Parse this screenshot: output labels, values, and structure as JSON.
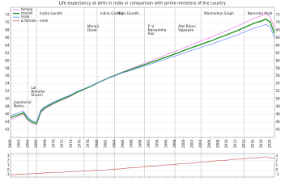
{
  "chart_data": [
    {
      "type": "line",
      "title": "Life expectancy at birth in India in comparison with prime ministers of the country",
      "x": [
        1960,
        1961,
        1962,
        1963,
        1964,
        1965,
        1966,
        1967,
        1968,
        1969,
        1970,
        1971,
        1972,
        1973,
        1974,
        1975,
        1976,
        1977,
        1978,
        1979,
        1980,
        1981,
        1982,
        1983,
        1984,
        1985,
        1986,
        1987,
        1988,
        1989,
        1990,
        1991,
        1992,
        1993,
        1994,
        1995,
        1996,
        1997,
        1998,
        1999,
        2000,
        2001,
        2002,
        2003,
        2004,
        2005,
        2006,
        2007,
        2008,
        2009,
        2010,
        2011,
        2012,
        2013,
        2014,
        2015,
        2016,
        2017,
        2018,
        2019,
        2020,
        2021
      ],
      "series": [
        {
          "name": "female",
          "color": "#ee77ee",
          "values": [
            44.7,
            45.1,
            45.6,
            46.0,
            44.4,
            43.6,
            43.3,
            46.5,
            47.5,
            48.1,
            48.8,
            49.3,
            49.8,
            50.3,
            50.8,
            51.5,
            52.0,
            52.5,
            53.0,
            53.6,
            54.2,
            54.7,
            55.2,
            55.8,
            56.2,
            56.7,
            57.2,
            57.6,
            58.1,
            58.5,
            58.9,
            59.4,
            59.8,
            60.2,
            60.7,
            61.1,
            61.6,
            62.0,
            62.4,
            62.9,
            63.4,
            63.8,
            64.3,
            64.7,
            65.2,
            65.6,
            66.0,
            66.5,
            67.0,
            67.4,
            67.9,
            68.4,
            68.9,
            69.4,
            69.9,
            70.5,
            71.0,
            71.4,
            71.8,
            72.3,
            71.5,
            68.5
          ]
        },
        {
          "name": "overall",
          "color": "#229922",
          "values": [
            45.2,
            45.6,
            46.0,
            46.4,
            44.8,
            44.0,
            43.6,
            46.8,
            47.8,
            48.4,
            49.0,
            49.5,
            50.0,
            50.5,
            51.0,
            51.6,
            52.1,
            52.6,
            53.1,
            53.6,
            54.2,
            54.7,
            55.2,
            55.7,
            56.1,
            56.6,
            57.0,
            57.4,
            57.8,
            58.2,
            58.6,
            59.0,
            59.4,
            59.8,
            60.2,
            60.6,
            61.0,
            61.4,
            61.8,
            62.2,
            62.7,
            63.1,
            63.5,
            63.9,
            64.3,
            64.7,
            65.1,
            65.5,
            66.0,
            66.4,
            66.8,
            67.3,
            67.7,
            68.2,
            68.7,
            69.2,
            69.7,
            70.1,
            70.4,
            70.9,
            70.2,
            67.2
          ]
        },
        {
          "name": "male",
          "color": "#6688ff",
          "values": [
            45.7,
            46.1,
            46.5,
            46.9,
            45.2,
            44.4,
            44.0,
            47.2,
            48.1,
            48.7,
            49.3,
            49.8,
            50.3,
            50.7,
            51.2,
            51.8,
            52.3,
            52.7,
            53.2,
            53.7,
            54.3,
            54.7,
            55.2,
            55.7,
            56.0,
            56.5,
            56.9,
            57.2,
            57.6,
            58.0,
            58.3,
            58.7,
            59.0,
            59.4,
            59.8,
            60.1,
            60.5,
            60.9,
            61.2,
            61.6,
            62.0,
            62.4,
            62.8,
            63.1,
            63.5,
            63.9,
            64.2,
            64.6,
            65.0,
            65.4,
            65.8,
            66.2,
            66.6,
            67.1,
            67.5,
            68.0,
            68.4,
            68.8,
            69.1,
            69.5,
            68.9,
            66.0
          ]
        }
      ],
      "xlim": [
        1960,
        2021
      ],
      "xticks": [
        1960,
        1962,
        1964,
        1966,
        1968,
        1970,
        1972,
        1974,
        1976,
        1978,
        1980,
        1982,
        1984,
        1986,
        1988,
        1990,
        1992,
        1994,
        1996,
        1998,
        2000,
        2002,
        2004,
        2006,
        2008,
        2010,
        2012,
        2014,
        2016,
        2018,
        2020
      ],
      "ylim": [
        40,
        74
      ],
      "yticks": [
        42,
        44,
        46,
        48,
        50,
        52,
        54,
        56,
        58,
        60,
        62,
        64,
        66,
        68,
        70,
        72
      ],
      "grid": true,
      "legend": "upper left",
      "annotations": [
        {
          "x": 1960,
          "label": [
            "Jawaharlal",
            "Nehru"
          ]
        },
        {
          "x": 1964,
          "label": [
            "Lal",
            "Bahadur",
            "Shastri"
          ]
        },
        {
          "x": 1966,
          "label": [
            "Indira Gandhi"
          ]
        },
        {
          "x": 1977,
          "label": [
            "Morarji",
            "Desai"
          ]
        },
        {
          "x": 1980,
          "label": [
            "Indira Gandhi"
          ]
        },
        {
          "x": 1984,
          "label": [
            "Rajiv Gandhi"
          ]
        },
        {
          "x": 1991,
          "label": [
            "P. V.",
            "Narasimha",
            "Rao"
          ]
        },
        {
          "x": 1998,
          "label": [
            "Atal Bihari",
            "Vajpayee"
          ]
        },
        {
          "x": 2004,
          "label": [
            "Manmohan Singh"
          ]
        },
        {
          "x": 2014,
          "label": [
            "Narendra Modi"
          ]
        }
      ]
    },
    {
      "type": "line",
      "x": [
        1960,
        1961,
        1962,
        1963,
        1964,
        1965,
        1966,
        1967,
        1968,
        1969,
        1970,
        1971,
        1972,
        1973,
        1974,
        1975,
        1976,
        1977,
        1978,
        1979,
        1980,
        1981,
        1982,
        1983,
        1984,
        1985,
        1986,
        1987,
        1988,
        1989,
        1990,
        1991,
        1992,
        1993,
        1994,
        1995,
        1996,
        1997,
        1998,
        1999,
        2000,
        2001,
        2002,
        2003,
        2004,
        2005,
        2006,
        2007,
        2008,
        2009,
        2010,
        2011,
        2012,
        2013,
        2014,
        2015,
        2016,
        2017,
        2018,
        2019,
        2020,
        2021
      ],
      "series": [
        {
          "name": "Δ female - male",
          "color": "#cc6666",
          "values": [
            -1.0,
            -1.0,
            -0.9,
            -0.9,
            -0.8,
            -0.8,
            -0.7,
            -0.7,
            -0.6,
            -0.6,
            -0.5,
            -0.5,
            -0.5,
            -0.4,
            -0.4,
            -0.3,
            -0.3,
            -0.2,
            -0.2,
            -0.1,
            -0.1,
            0.0,
            0.0,
            0.1,
            0.2,
            0.2,
            0.3,
            0.4,
            0.5,
            0.5,
            0.6,
            0.7,
            0.8,
            0.8,
            0.9,
            1.0,
            1.1,
            1.1,
            1.2,
            1.3,
            1.4,
            1.4,
            1.5,
            1.6,
            1.7,
            1.7,
            1.8,
            1.9,
            2.0,
            2.0,
            2.1,
            2.2,
            2.3,
            2.3,
            2.4,
            2.5,
            2.6,
            2.6,
            2.7,
            2.8,
            2.6,
            2.5
          ]
        }
      ],
      "xlim": [
        1960,
        2021
      ],
      "ylim": [
        -1.5,
        3.5
      ],
      "yticks": [
        -1,
        0,
        1,
        2,
        3
      ],
      "grid": true
    }
  ]
}
